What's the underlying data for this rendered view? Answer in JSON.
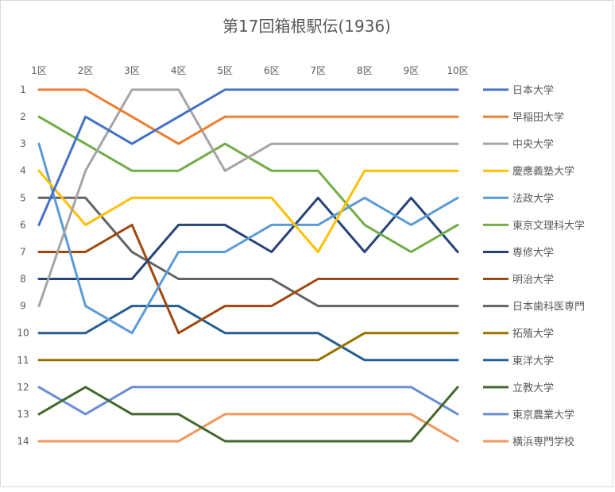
{
  "chart_data": {
    "type": "line",
    "title": "第17回箱根駅伝(1936)",
    "xlabel": "",
    "ylabel": "",
    "categories": [
      "1区",
      "2区",
      "3区",
      "4区",
      "5区",
      "6区",
      "7区",
      "8区",
      "9区",
      "10区"
    ],
    "y_ticks": [
      "1",
      "2",
      "3",
      "4",
      "5",
      "6",
      "7",
      "8",
      "9",
      "10",
      "11",
      "12",
      "13",
      "14"
    ],
    "ylim": [
      1,
      14
    ],
    "y_inverted": true,
    "grid": false,
    "legend_position": "right",
    "series": [
      {
        "name": "日本大学",
        "color": "#4472c4",
        "values": [
          6,
          2,
          3,
          2,
          1,
          1,
          1,
          1,
          1,
          1
        ]
      },
      {
        "name": "早稲田大学",
        "color": "#ed7d31",
        "values": [
          1,
          1,
          2,
          3,
          2,
          2,
          2,
          2,
          2,
          2
        ]
      },
      {
        "name": "中央大学",
        "color": "#a5a5a5",
        "values": [
          9,
          4,
          1,
          1,
          4,
          3,
          3,
          3,
          3,
          3
        ]
      },
      {
        "name": "慶應義塾大学",
        "color": "#ffc000",
        "values": [
          4,
          6,
          5,
          5,
          5,
          5,
          7,
          4,
          4,
          4
        ]
      },
      {
        "name": "法政大学",
        "color": "#5b9bd5",
        "values": [
          3,
          9,
          10,
          7,
          7,
          6,
          6,
          5,
          6,
          5
        ]
      },
      {
        "name": "東京文理科大学",
        "color": "#70ad47",
        "values": [
          2,
          3,
          4,
          4,
          3,
          4,
          4,
          6,
          7,
          6
        ]
      },
      {
        "name": "専修大学",
        "color": "#264478",
        "values": [
          8,
          8,
          8,
          6,
          6,
          7,
          5,
          7,
          5,
          7
        ]
      },
      {
        "name": "明治大学",
        "color": "#9e480e",
        "values": [
          7,
          7,
          6,
          10,
          9,
          9,
          8,
          8,
          8,
          8
        ]
      },
      {
        "name": "日本歯科医専門",
        "color": "#636363",
        "values": [
          5,
          5,
          7,
          8,
          8,
          8,
          9,
          9,
          9,
          9
        ]
      },
      {
        "name": "拓殖大学",
        "color": "#997300",
        "values": [
          11,
          11,
          11,
          11,
          11,
          11,
          11,
          10,
          10,
          10
        ]
      },
      {
        "name": "東洋大学",
        "color": "#255e91",
        "values": [
          10,
          10,
          9,
          9,
          10,
          10,
          10,
          11,
          11,
          11
        ]
      },
      {
        "name": "立教大学",
        "color": "#43682b",
        "values": [
          13,
          12,
          13,
          13,
          14,
          14,
          14,
          14,
          14,
          12
        ]
      },
      {
        "name": "東京農業大学",
        "color": "#698ed0",
        "values": [
          12,
          13,
          12,
          12,
          12,
          12,
          12,
          12,
          12,
          13
        ]
      },
      {
        "name": "横浜専門学校",
        "color": "#f1975a",
        "values": [
          14,
          14,
          14,
          14,
          13,
          13,
          13,
          13,
          13,
          14
        ]
      }
    ]
  }
}
